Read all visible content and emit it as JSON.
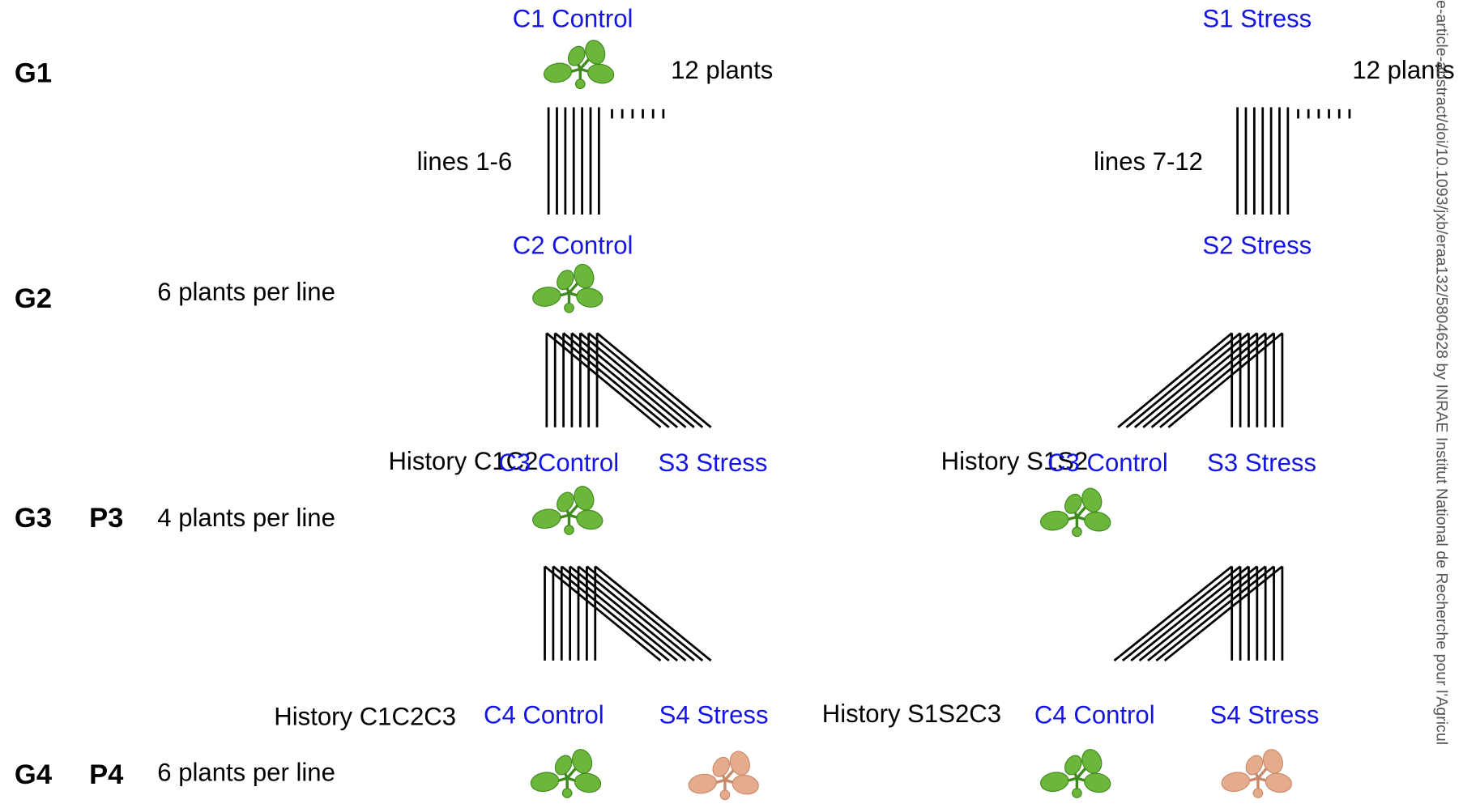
{
  "generations": [
    {
      "label": "G1"
    },
    {
      "label": "G2",
      "note": "6 plants per line"
    },
    {
      "label": "G3",
      "population": "P3",
      "note": "4 plants per line"
    },
    {
      "label": "G4",
      "population": "P4",
      "note": "6 plants per line"
    }
  ],
  "g1": {
    "control": "C1 Control",
    "stress": "S1 Stress",
    "control_count": "12 plants",
    "stress_count": "12 plants",
    "control_lines": "lines 1-6",
    "stress_lines": "lines 7-12"
  },
  "g2": {
    "control": "C2 Control",
    "stress": "S2 Stress"
  },
  "g3": {
    "left_history": "History C1C2",
    "left_control": "C3 Control",
    "left_stress": "S3 Stress",
    "right_history": "History S1S2",
    "right_control": "C3 Control",
    "right_stress": "S3 Stress"
  },
  "g4": {
    "left_history": "History C1C2C3",
    "left_control": "C4 Control",
    "left_stress": "S4 Stress",
    "right_history": "History S1S2C3",
    "right_control": "C4 Control",
    "right_stress": "S4 Stress"
  },
  "watermark": "e-article-abstract/doi/10.1093/jxb/eraa132/5804628 by INRAE Institut National de Recherche pour l'Agricul"
}
